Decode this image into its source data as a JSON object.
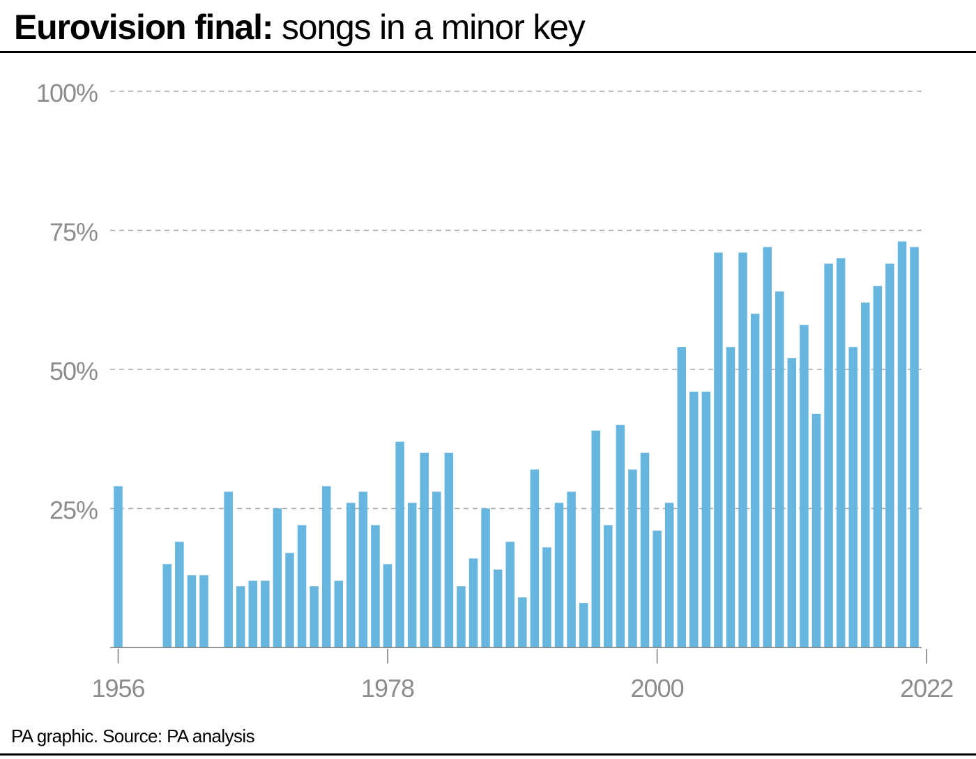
{
  "header": {
    "title_bold": "Eurovision final:",
    "title_rest": " songs in a minor key"
  },
  "footer": {
    "source": "PA graphic. Source: PA analysis"
  },
  "colors": {
    "bar": "#67b6df",
    "grid": "#a6a6a6",
    "axis_text": "#8c8c8c",
    "baseline": "#777777"
  },
  "chart_data": {
    "type": "bar",
    "title": "Eurovision final: songs in a minor key",
    "xlabel": "",
    "ylabel": "",
    "ylim": [
      0,
      100
    ],
    "yticks": [
      25,
      50,
      75,
      100
    ],
    "ytick_labels": [
      "25%",
      "50%",
      "75%",
      "100%"
    ],
    "xtick_labels": [
      "1956",
      "1978",
      "2000",
      "2022"
    ],
    "grid": true,
    "legend": "none",
    "categories": [
      "1956",
      "1957",
      "1958",
      "1959",
      "1960",
      "1961",
      "1962",
      "1963",
      "1964",
      "1965",
      "1966",
      "1967",
      "1968",
      "1969",
      "1970",
      "1971",
      "1972",
      "1973",
      "1974",
      "1975",
      "1976",
      "1977",
      "1978",
      "1979",
      "1980",
      "1981",
      "1982",
      "1983",
      "1984",
      "1985",
      "1986",
      "1987",
      "1988",
      "1989",
      "1990",
      "1991",
      "1992",
      "1993",
      "1994",
      "1995",
      "1996",
      "1997",
      "1998",
      "1999",
      "2000",
      "2001",
      "2002",
      "2003",
      "2004",
      "2005",
      "2006",
      "2007",
      "2008",
      "2009",
      "2010",
      "2011",
      "2012",
      "2013",
      "2014",
      "2015",
      "2016",
      "2017",
      "2018",
      "2019",
      "2020",
      "2021",
      "2022"
    ],
    "values": [
      29,
      0,
      0,
      0,
      15,
      19,
      13,
      13,
      0,
      28,
      11,
      12,
      12,
      25,
      17,
      22,
      11,
      29,
      12,
      26,
      28,
      22,
      15,
      37,
      26,
      35,
      28,
      35,
      11,
      16,
      25,
      14,
      19,
      9,
      32,
      18,
      26,
      28,
      8,
      39,
      22,
      40,
      32,
      35,
      21,
      26,
      54,
      46,
      46,
      71,
      54,
      71,
      60,
      72,
      64,
      52,
      58,
      42,
      69,
      70,
      54,
      62,
      65,
      69,
      73,
      72,
      0
    ]
  }
}
